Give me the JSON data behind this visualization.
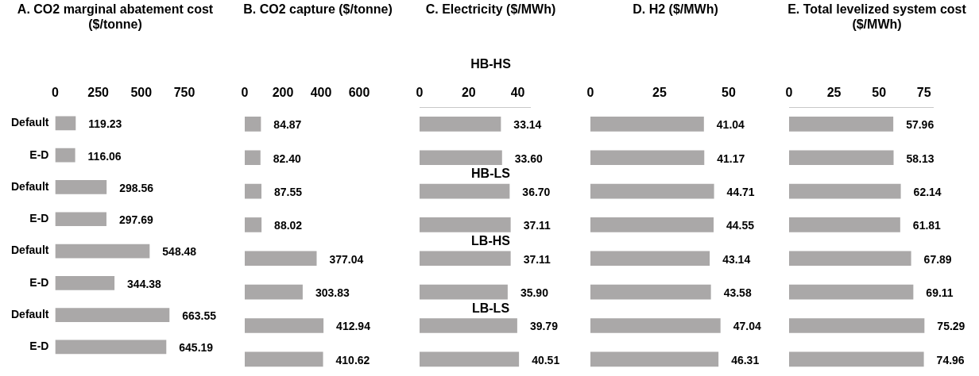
{
  "chart_data": [
    {
      "type": "bar",
      "orientation": "horizontal",
      "title": "A. CO2 marginal abatement cost ($/tonne)",
      "categories": [
        "Default",
        "E-D",
        "Default",
        "E-D",
        "Default",
        "E-D",
        "Default",
        "E-D"
      ],
      "values": [
        119.23,
        116.06,
        298.56,
        297.69,
        548.48,
        344.38,
        663.55,
        645.19
      ],
      "value_labels": [
        "119.23",
        "116.06",
        "298.56",
        "297.69",
        "548.48",
        "344.38",
        "663.55",
        "645.19"
      ],
      "color": "#aaa8a8",
      "xlim": [
        0,
        750
      ],
      "xticks": [
        0,
        250,
        500,
        750
      ],
      "grid": false,
      "legend": false
    },
    {
      "type": "bar",
      "orientation": "horizontal",
      "title": "B. CO2 capture ($/tonne)",
      "categories": [
        null,
        null,
        null,
        null,
        null,
        null,
        null,
        null
      ],
      "values": [
        84.87,
        82.4,
        87.55,
        88.02,
        377.04,
        303.83,
        412.94,
        410.62
      ],
      "value_labels": [
        "84.87",
        "82.40",
        "87.55",
        "88.02",
        "377.04",
        "303.83",
        "412.94",
        "410.62"
      ],
      "color": "#aaa8a8",
      "xlim": [
        0,
        600
      ],
      "xticks": [
        0,
        200,
        400,
        600
      ],
      "grid": false,
      "legend": false,
      "tick_labels": "x"
    },
    {
      "type": "bar",
      "orientation": "horizontal",
      "title": "C. Electricity ($/MWh)",
      "categories": [
        null,
        null,
        null,
        null,
        null,
        null,
        null,
        null
      ],
      "values": [
        33.14,
        33.6,
        36.7,
        37.11,
        37.11,
        35.9,
        39.79,
        40.51
      ],
      "value_labels": [
        "33.14",
        "33.60",
        "36.70",
        "37.11",
        "37.11",
        "35.90",
        "39.79",
        "40.51"
      ],
      "color": "#aaa8a8",
      "xlim": [
        0,
        45
      ],
      "xticks": [
        0,
        20,
        40
      ],
      "grid": false,
      "legend": false,
      "tick_labels": "x",
      "annotations": [
        "HB-HS",
        "HB-LS",
        "LB-HS",
        "LB-LS"
      ]
    },
    {
      "type": "bar",
      "orientation": "horizontal",
      "title": "D. H2 ($/MWh)",
      "categories": [
        null,
        null,
        null,
        null,
        null,
        null,
        null,
        null
      ],
      "values": [
        41.04,
        41.17,
        44.71,
        44.55,
        43.14,
        43.58,
        47.04,
        46.31
      ],
      "value_labels": [
        "41.04",
        "41.17",
        "44.71",
        "44.55",
        "43.14",
        "43.58",
        "47.04",
        "46.31"
      ],
      "color": "#aaa8a8",
      "xlim": [
        0,
        50
      ],
      "xticks": [
        0,
        25,
        50
      ],
      "grid": false,
      "legend": false,
      "tick_labels": "x"
    },
    {
      "type": "bar",
      "orientation": "horizontal",
      "title": "E. Total levelized system cost ($/MWh)",
      "categories": [
        null,
        null,
        null,
        null,
        null,
        null,
        null,
        null
      ],
      "values": [
        57.96,
        58.13,
        62.14,
        61.81,
        67.89,
        69.11,
        75.29,
        74.96
      ],
      "value_labels": [
        "57.96",
        "58.13",
        "62.14",
        "61.81",
        "67.89",
        "69.11",
        "75.29",
        "74.96"
      ],
      "color": "#aaa8a8",
      "xlim": [
        0,
        80
      ],
      "xticks": [
        0,
        25,
        50,
        75
      ],
      "grid": false,
      "legend": false,
      "tick_labels": "x"
    }
  ]
}
